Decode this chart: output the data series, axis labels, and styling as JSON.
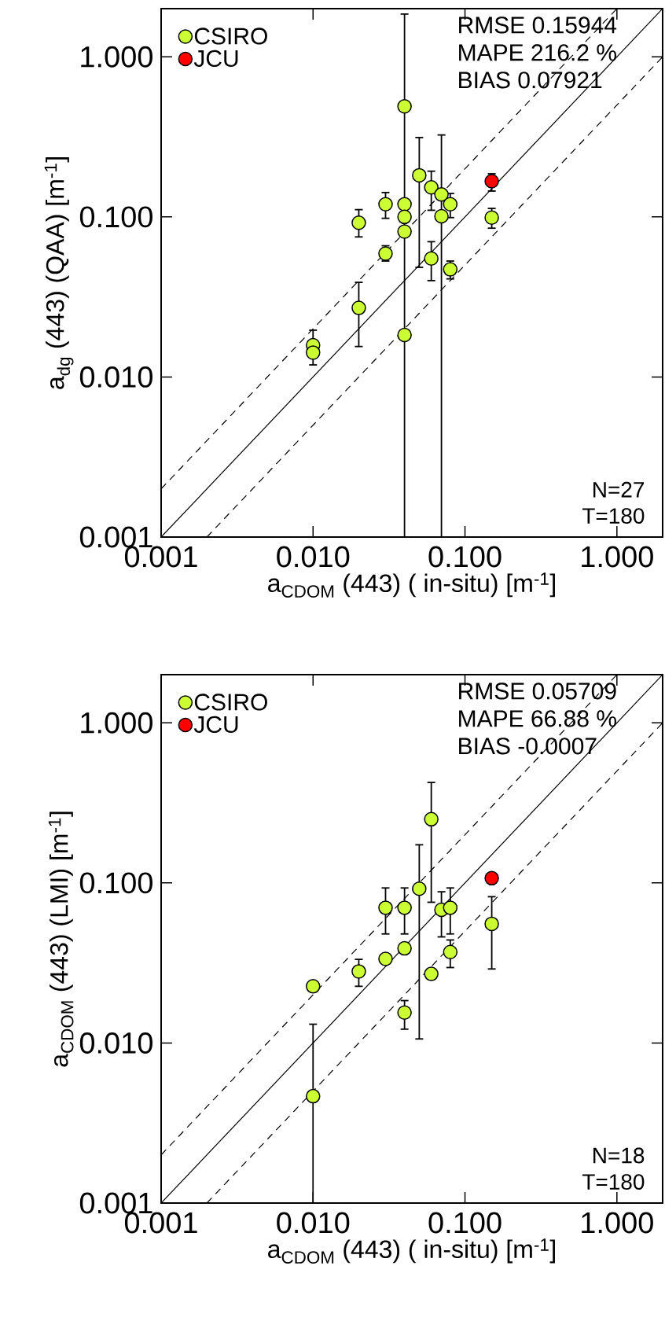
{
  "chart_data": [
    {
      "type": "scatter",
      "xlabel": "a$_{CDOM}$ (443) ( in-situ) [m$^{-1}$]",
      "ylabel": "a$_{dg}$ (443) (QAA) [m$^{-1}$]",
      "log": "xy",
      "legend": "top left",
      "xlim": [
        0.001,
        2
      ],
      "ylim": [
        0.001,
        2
      ],
      "xticks": [
        {
          "value": 0.001,
          "label": "0.001"
        },
        {
          "value": 0.01,
          "label": "0.010"
        },
        {
          "value": 0.1,
          "label": "0.100"
        },
        {
          "value": 1,
          "label": "1.000"
        }
      ],
      "yticks": [
        {
          "value": 0.001,
          "label": "0.001"
        },
        {
          "value": 0.01,
          "label": "0.010"
        },
        {
          "value": 0.1,
          "label": "0.100"
        },
        {
          "value": 1,
          "label": "1.000"
        }
      ],
      "annotations": [
        "RMSE 0.15944",
        "MAPE 216.2 %",
        "BIAS 0.07921",
        "N=27",
        "T=180"
      ],
      "series": [
        {
          "name": "CSIRO",
          "color": "#ccff33",
          "marker": "circle",
          "x": [
            0.01,
            0.01,
            0.02,
            0.02,
            0.03,
            0.03,
            0.04,
            0.04,
            0.04,
            0.04,
            0.04,
            0.05,
            0.06,
            0.06,
            0.07,
            0.07,
            0.08,
            0.08,
            0.15
          ],
          "values": [
            0.0158,
            0.0142,
            0.092,
            0.027,
            0.12,
            0.059,
            0.49,
            0.12,
            0.1,
            0.081,
            0.0183,
            0.182,
            0.153,
            0.055,
            0.138,
            0.101,
            0.12,
            0.047,
            0.099
          ],
          "errors": [
            [
              0.0119,
              0.0196
            ],
            null,
            [
              0.075,
              0.111
            ],
            [
              0.0155,
              0.039
            ],
            [
              0.098,
              0.142
            ],
            [
              0.053,
              0.066
            ],
            [
              0.001,
              1.85
            ],
            null,
            null,
            null,
            null,
            [
              0.0484,
              0.313
            ],
            [
              0.11,
              0.193
            ],
            [
              0.04,
              0.07
            ],
            null,
            [
              0.001,
              0.325
            ],
            [
              0.099,
              0.14
            ],
            [
              0.041,
              0.053
            ],
            [
              0.085,
              0.113
            ]
          ]
        },
        {
          "name": "JCU",
          "color": "#ff0000",
          "marker": "circle",
          "x": [
            0.15
          ],
          "values": [
            0.167
          ],
          "errors": [
            [
              0.145,
              0.186
            ]
          ]
        },
        {
          "type": "line",
          "color": "#000000",
          "line_style": "solid",
          "marker": "none",
          "x": [
            0.001,
            2
          ],
          "values": [
            0.001,
            2
          ]
        },
        {
          "type": "line",
          "color": "#000000",
          "line_style": "dashed",
          "marker": "none",
          "x": [
            0.001,
            1
          ],
          "values": [
            0.002,
            2
          ]
        },
        {
          "type": "line",
          "color": "#000000",
          "line_style": "dashed",
          "marker": "none",
          "x": [
            0.002,
            2
          ],
          "values": [
            0.001,
            1
          ]
        }
      ]
    },
    {
      "type": "scatter",
      "xlabel": "a$_{CDOM}$ (443) ( in-situ) [m$^{-1}$]",
      "ylabel": "a$_{CDOM}$ (443) (LMI) [m$^{-1}$]",
      "log": "xy",
      "legend": "top left",
      "xlim": [
        0.001,
        2
      ],
      "ylim": [
        0.001,
        2
      ],
      "xticks": [
        {
          "value": 0.001,
          "label": "0.001"
        },
        {
          "value": 0.01,
          "label": "0.010"
        },
        {
          "value": 0.1,
          "label": "0.100"
        },
        {
          "value": 1,
          "label": "1.000"
        }
      ],
      "yticks": [
        {
          "value": 0.001,
          "label": "0.001"
        },
        {
          "value": 0.01,
          "label": "0.010"
        },
        {
          "value": 0.1,
          "label": "0.100"
        },
        {
          "value": 1,
          "label": "1.000"
        }
      ],
      "annotations": [
        "RMSE 0.05709",
        "MAPE 66.88 %",
        "BIAS -0.0007",
        "N=18",
        "T=180"
      ],
      "series": [
        {
          "name": "CSIRO",
          "color": "#ccff33",
          "marker": "circle",
          "x": [
            0.01,
            0.01,
            0.02,
            0.03,
            0.03,
            0.04,
            0.04,
            0.04,
            0.05,
            0.06,
            0.06,
            0.07,
            0.08,
            0.08,
            0.15
          ],
          "values": [
            0.0226,
            0.00465,
            0.028,
            0.07,
            0.0335,
            0.07,
            0.039,
            0.0155,
            0.092,
            0.25,
            0.027,
            0.068,
            0.07,
            0.037,
            0.0555
          ],
          "errors": [
            null,
            [
              0.001,
              0.0131
            ],
            [
              0.0226,
              0.0333
            ],
            [
              0.048,
              0.093
            ],
            null,
            [
              0.048,
              0.093
            ],
            null,
            [
              0.0122,
              0.0184
            ],
            [
              0.0106,
              0.173
            ],
            [
              0.0757,
              0.424
            ],
            null,
            [
              0.046,
              0.088
            ],
            [
              0.048,
              0.093
            ],
            [
              0.0296,
              0.044
            ],
            [
              0.029,
              0.082
            ]
          ]
        },
        {
          "name": "JCU",
          "color": "#ff0000",
          "marker": "circle",
          "x": [
            0.15
          ],
          "values": [
            0.107
          ]
        },
        {
          "type": "line",
          "color": "#000000",
          "line_style": "solid",
          "marker": "none",
          "x": [
            0.001,
            2
          ],
          "values": [
            0.001,
            2
          ]
        },
        {
          "type": "line",
          "color": "#000000",
          "line_style": "dashed",
          "marker": "none",
          "x": [
            0.001,
            1
          ],
          "values": [
            0.002,
            2
          ]
        },
        {
          "type": "line",
          "color": "#000000",
          "line_style": "dashed",
          "marker": "none",
          "x": [
            0.002,
            2
          ],
          "values": [
            0.001,
            1
          ]
        }
      ]
    }
  ]
}
